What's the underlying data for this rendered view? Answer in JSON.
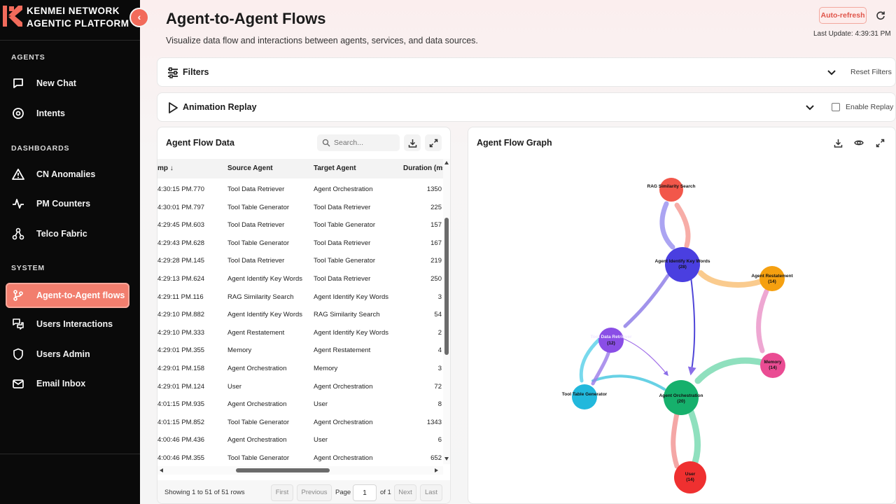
{
  "brand": {
    "line1": "KENMEI NETWORK",
    "line2": "AGENTIC PLATFORM",
    "collapse_icon": "chevron-left-icon",
    "accent": "#f26b5b"
  },
  "sidebar": {
    "sections": [
      {
        "label": "AGENTS"
      },
      {
        "label": "DASHBOARDS"
      },
      {
        "label": "SYSTEM"
      }
    ],
    "items": [
      {
        "label": "New Chat",
        "icon": "chat-icon"
      },
      {
        "label": "Intents",
        "icon": "target-icon"
      },
      {
        "label": "CN Anomalies",
        "icon": "warning-icon"
      },
      {
        "label": "PM Counters",
        "icon": "pulse-icon"
      },
      {
        "label": "Telco Fabric",
        "icon": "network-icon"
      },
      {
        "label": "Agent-to-Agent flows",
        "icon": "flow-icon",
        "active": true
      },
      {
        "label": "Users Interactions",
        "icon": "users-chat-icon"
      },
      {
        "label": "Users Admin",
        "icon": "shield-icon"
      },
      {
        "label": "Email Inbox",
        "icon": "mail-icon"
      }
    ]
  },
  "header": {
    "title": "Agent-to-Agent Flows",
    "subtitle": "Visualize data flow and interactions between agents, services, and data sources.",
    "auto_refresh_label": "Auto-refresh",
    "last_update": "Last Update: 4:39:31 PM"
  },
  "filters": {
    "label": "Filters",
    "reset_label": "Reset Filters"
  },
  "replay": {
    "label": "Animation Replay",
    "enable_label": "Enable Replay",
    "enabled": false
  },
  "data_panel": {
    "title": "Agent Flow Data",
    "search_placeholder": "Search...",
    "columns": [
      "mp ↓",
      "Source Agent",
      "Target Agent",
      "Duration (ms"
    ],
    "rows": [
      [
        "4:30:15 PM.770",
        "Tool Data Retriever",
        "Agent Orchestration",
        "1350"
      ],
      [
        "4:30:01 PM.797",
        "Tool Table Generator",
        "Tool Data Retriever",
        "225"
      ],
      [
        "4:29:45 PM.603",
        "Tool Data Retriever",
        "Tool Table Generator",
        "157"
      ],
      [
        "4:29:43 PM.628",
        "Tool Table Generator",
        "Tool Data Retriever",
        "167"
      ],
      [
        "4:29:28 PM.145",
        "Tool Data Retriever",
        "Tool Table Generator",
        "219"
      ],
      [
        "4:29:13 PM.624",
        "Agent Identify Key Words",
        "Tool Data Retriever",
        "250"
      ],
      [
        "4:29:11 PM.116",
        "RAG Similarity Search",
        "Agent Identify Key Words",
        "3"
      ],
      [
        "4:29:10 PM.882",
        "Agent Identify Key Words",
        "RAG Similarity Search",
        "54"
      ],
      [
        "4:29:10 PM.333",
        "Agent Restatement",
        "Agent Identify Key Words",
        "2"
      ],
      [
        "4:29:01 PM.355",
        "Memory",
        "Agent Restatement",
        "4"
      ],
      [
        "4:29:01 PM.158",
        "Agent Orchestration",
        "Memory",
        "3"
      ],
      [
        "4:29:01 PM.124",
        "User",
        "Agent Orchestration",
        "72"
      ],
      [
        "4:01:15 PM.935",
        "Agent Orchestration",
        "User",
        "8"
      ],
      [
        "4:01:15 PM.852",
        "Tool Table Generator",
        "Agent Orchestration",
        "1343"
      ],
      [
        "4:00:46 PM.436",
        "Agent Orchestration",
        "User",
        "6"
      ],
      [
        "4:00:46 PM.355",
        "Tool Table Generator",
        "Agent Orchestration",
        "652"
      ]
    ],
    "rows_info": "Showing 1 to 51 of 51 rows",
    "pagination": {
      "first": "First",
      "previous": "Previous",
      "page_word": "Page",
      "page_value": "1",
      "of_pages": "of 1",
      "next": "Next",
      "last": "Last"
    }
  },
  "graph_panel": {
    "title": "Agent Flow Graph",
    "nodes": [
      {
        "name": "RAG Similarity Search",
        "count": "",
        "color": "#f2574a"
      },
      {
        "name": "Agent Identify Key Words",
        "count": "(28)",
        "color": "#4a3fe0"
      },
      {
        "name": "Agent Restatement",
        "count": "(14)",
        "color": "#f5a010"
      },
      {
        "name": "Tool Data Retriever",
        "count": "(12)",
        "color": "#8a4ee6"
      },
      {
        "name": "Memory",
        "count": "(14)",
        "color": "#ea4c93"
      },
      {
        "name": "Tool Table Generator",
        "count": "",
        "color": "#22b8dc"
      },
      {
        "name": "Agent Orchestration",
        "count": "(20)",
        "color": "#16b06c"
      },
      {
        "name": "User",
        "count": "(14)",
        "color": "#ef3030"
      }
    ]
  }
}
